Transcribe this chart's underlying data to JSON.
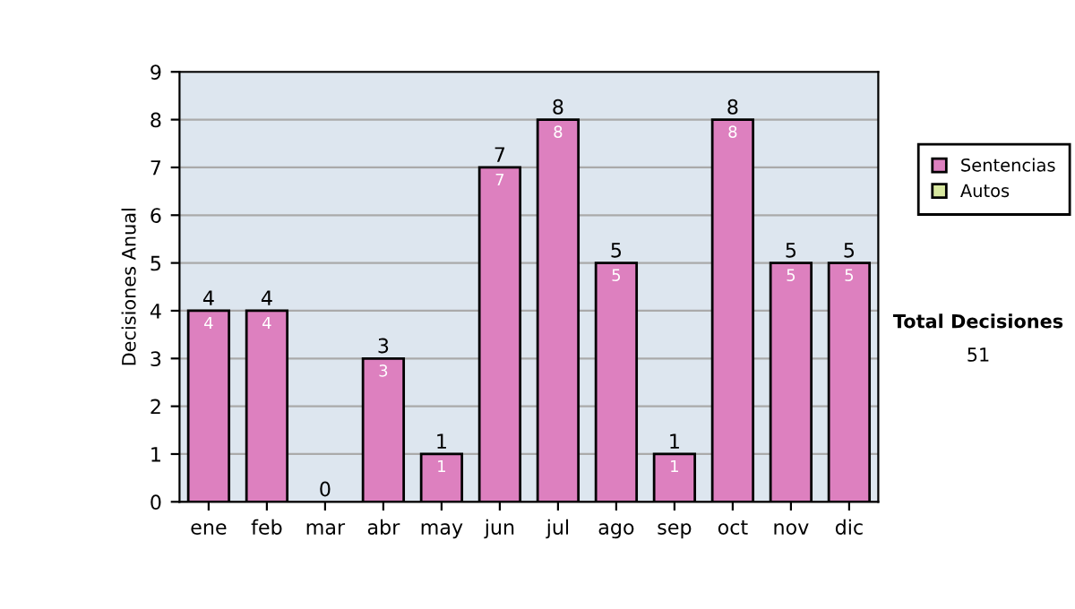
{
  "chart_data": {
    "type": "bar",
    "ylabel": "Decisiones Anual",
    "categories": [
      "ene",
      "feb",
      "mar",
      "abr",
      "may",
      "jun",
      "jul",
      "ago",
      "sep",
      "oct",
      "nov",
      "dic"
    ],
    "series": [
      {
        "name": "Sentencias",
        "color": "#dd80bf",
        "values": [
          4,
          4,
          0,
          3,
          1,
          7,
          8,
          5,
          1,
          8,
          5,
          5
        ],
        "value_labels": [
          "4",
          "4",
          null,
          "3",
          "1",
          "7",
          "8",
          "5",
          "1",
          "8",
          "5",
          "5"
        ]
      },
      {
        "name": "Autos",
        "color": "#d8e8a0",
        "values": [
          0,
          0,
          0,
          0,
          0,
          0,
          0,
          0,
          0,
          0,
          0,
          0
        ]
      }
    ],
    "stacked": true,
    "totals": [
      "4",
      "4",
      "0",
      "3",
      "1",
      "7",
      "8",
      "5",
      "1",
      "8",
      "5",
      "5"
    ],
    "ylim": [
      0,
      9
    ],
    "yticks": [
      0,
      1,
      2,
      3,
      4,
      5,
      6,
      7,
      8,
      9
    ],
    "grid": "y",
    "legend": "right",
    "annotations": [
      "Total Decisiones",
      "51"
    ]
  }
}
